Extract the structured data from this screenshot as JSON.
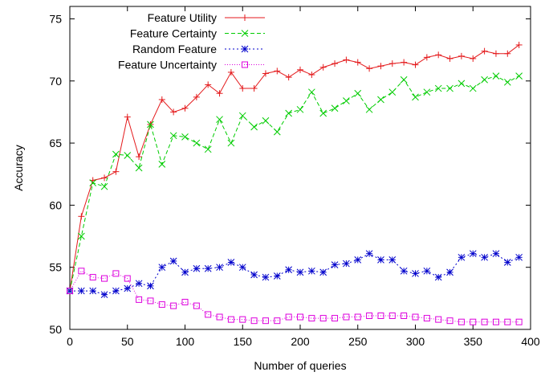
{
  "chart_data": {
    "type": "line",
    "title": "",
    "xlabel": "Number of queries",
    "ylabel": "Accuracy",
    "xlim": [
      0,
      400
    ],
    "ylim": [
      50,
      76
    ],
    "xticks": [
      0,
      50,
      100,
      150,
      200,
      250,
      300,
      350,
      400
    ],
    "yticks": [
      50,
      55,
      60,
      65,
      70,
      75
    ],
    "grid": false,
    "legend_position": "top-right",
    "x": [
      0,
      10,
      20,
      30,
      40,
      50,
      60,
      70,
      80,
      90,
      100,
      110,
      120,
      130,
      140,
      150,
      160,
      170,
      180,
      190,
      200,
      210,
      220,
      230,
      240,
      250,
      260,
      270,
      280,
      290,
      300,
      310,
      320,
      330,
      340,
      350,
      360,
      370,
      380,
      390
    ],
    "series": [
      {
        "name": "Feature Utility",
        "color": "#e41a1c",
        "marker": "plus",
        "dash": "",
        "values": [
          53.1,
          59.1,
          62.0,
          62.2,
          62.7,
          67.1,
          63.9,
          66.5,
          68.5,
          67.5,
          67.8,
          68.7,
          69.7,
          69.0,
          70.7,
          69.4,
          69.4,
          70.6,
          70.8,
          70.3,
          70.9,
          70.5,
          71.1,
          71.4,
          71.7,
          71.5,
          71.0,
          71.2,
          71.4,
          71.5,
          71.3,
          71.9,
          72.1,
          71.8,
          72.0,
          71.8,
          72.4,
          72.2,
          72.2,
          72.9
        ]
      },
      {
        "name": "Feature Certainty",
        "color": "#00cc00",
        "marker": "cross",
        "dash": "5,3",
        "values": [
          53.1,
          57.5,
          61.8,
          61.5,
          64.1,
          64.0,
          63.0,
          66.5,
          63.3,
          65.6,
          65.5,
          65.0,
          64.5,
          66.9,
          65.0,
          67.2,
          66.3,
          66.8,
          65.9,
          67.4,
          67.7,
          69.1,
          67.4,
          67.8,
          68.4,
          69.0,
          67.7,
          68.5,
          69.1,
          70.1,
          68.7,
          69.1,
          69.4,
          69.4,
          69.8,
          69.4,
          70.1,
          70.4,
          69.9,
          70.4
        ]
      },
      {
        "name": "Random Feature",
        "color": "#0000cc",
        "marker": "star",
        "dash": "2,3",
        "values": [
          53.1,
          53.1,
          53.1,
          52.8,
          53.1,
          53.3,
          53.7,
          53.5,
          55.0,
          55.5,
          54.6,
          54.9,
          54.9,
          55.0,
          55.4,
          55.0,
          54.4,
          54.2,
          54.3,
          54.8,
          54.6,
          54.7,
          54.6,
          55.2,
          55.3,
          55.6,
          56.1,
          55.6,
          55.6,
          54.7,
          54.5,
          54.7,
          54.2,
          54.6,
          55.8,
          56.1,
          55.8,
          56.1,
          55.4,
          55.8
        ]
      },
      {
        "name": "Feature Uncertainty",
        "color": "#dd00dd",
        "marker": "square",
        "dash": "1,2",
        "values": [
          53.1,
          54.7,
          54.2,
          54.1,
          54.5,
          54.1,
          52.4,
          52.3,
          52.0,
          51.9,
          52.2,
          51.9,
          51.2,
          51.0,
          50.8,
          50.8,
          50.7,
          50.7,
          50.7,
          51.0,
          51.0,
          50.9,
          50.9,
          50.9,
          51.0,
          51.0,
          51.1,
          51.1,
          51.1,
          51.1,
          51.0,
          50.9,
          50.8,
          50.7,
          50.6,
          50.6,
          50.6,
          50.6,
          50.6,
          50.6
        ]
      }
    ]
  }
}
